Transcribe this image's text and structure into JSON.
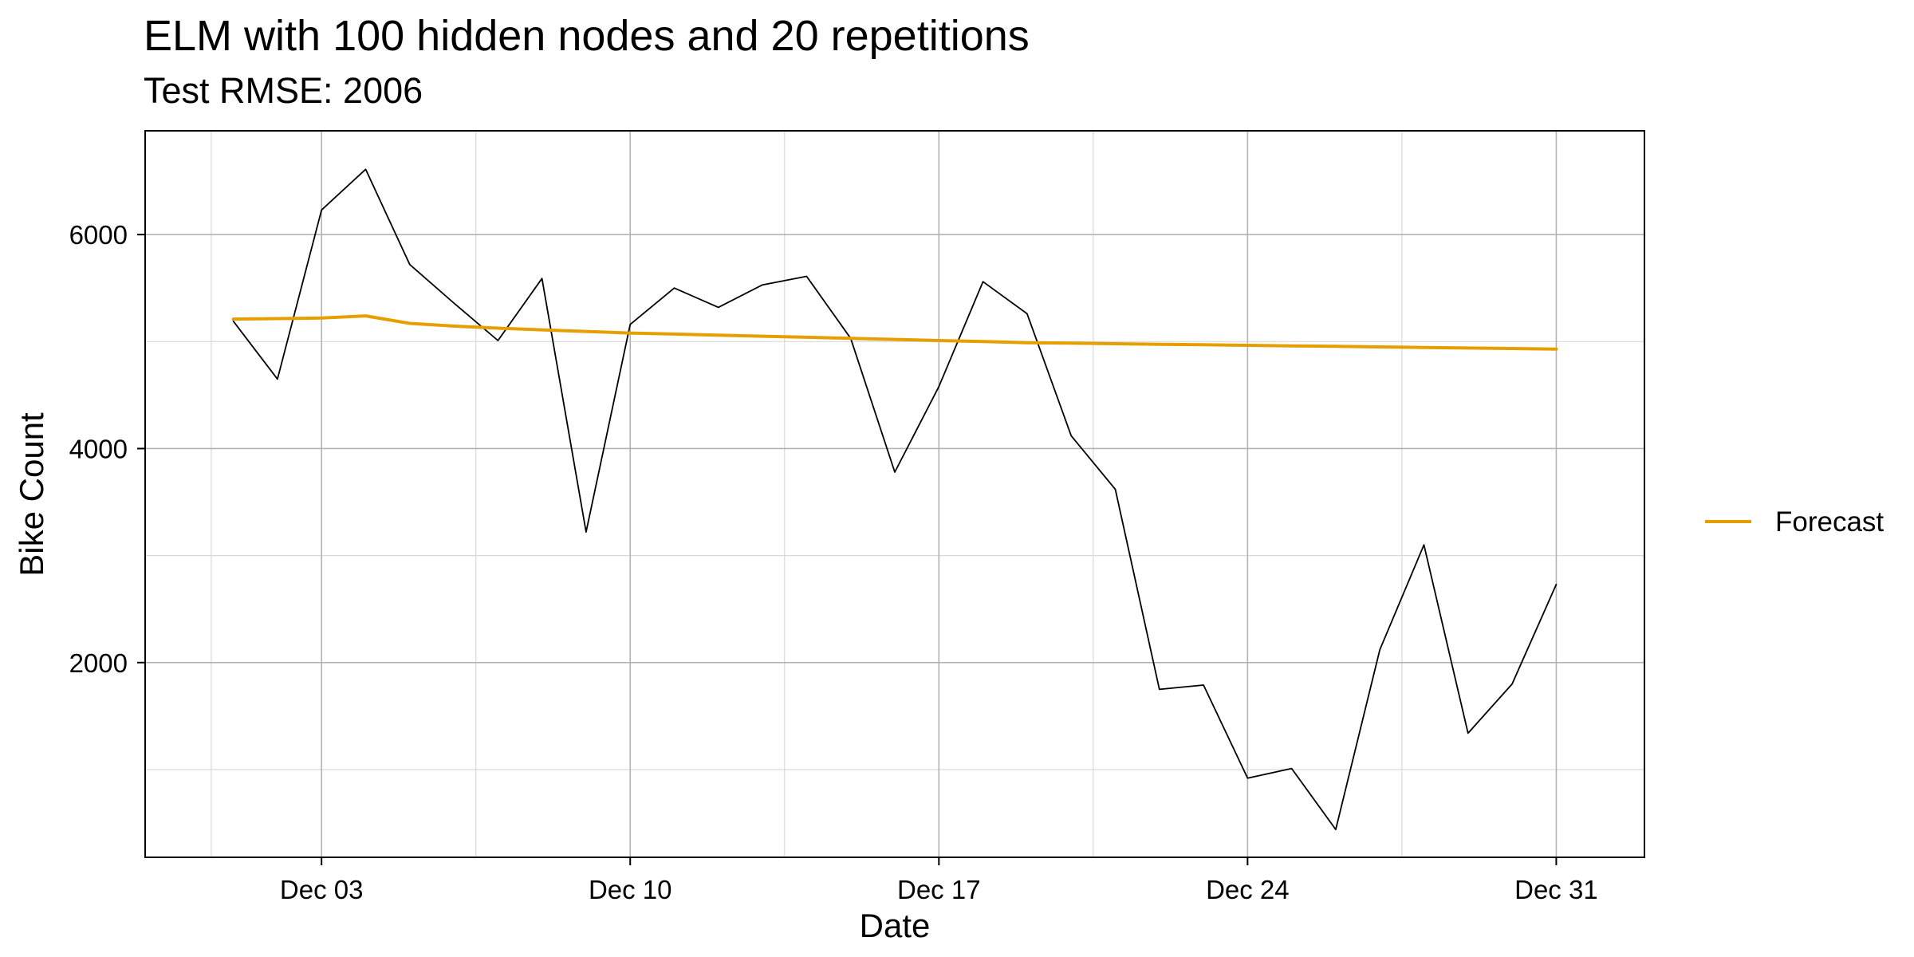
{
  "chart_data": {
    "type": "line",
    "title": "ELM with 100 hidden nodes and 20 repetitions",
    "subtitle": "Test RMSE: 2006",
    "xlabel": "Date",
    "ylabel": "Bike Count",
    "x_ticks": [
      "Dec 03",
      "Dec 10",
      "Dec 17",
      "Dec 24",
      "Dec 31"
    ],
    "y_ticks": [
      2000,
      4000,
      6000
    ],
    "ylim": [
      180,
      6970
    ],
    "grid": true,
    "legend_position": "right",
    "x": [
      "2012-12-01",
      "2012-12-02",
      "2012-12-03",
      "2012-12-04",
      "2012-12-05",
      "2012-12-06",
      "2012-12-07",
      "2012-12-08",
      "2012-12-09",
      "2012-12-10",
      "2012-12-11",
      "2012-12-12",
      "2012-12-13",
      "2012-12-14",
      "2012-12-15",
      "2012-12-16",
      "2012-12-17",
      "2012-12-18",
      "2012-12-19",
      "2012-12-20",
      "2012-12-21",
      "2012-12-22",
      "2012-12-23",
      "2012-12-24",
      "2012-12-25",
      "2012-12-26",
      "2012-12-27",
      "2012-12-28",
      "2012-12-29",
      "2012-12-30",
      "2012-12-31"
    ],
    "series": [
      {
        "name": "",
        "color": "#000000",
        "values": [
          5190,
          4650,
          6230,
          6610,
          5720,
          5360,
          5010,
          5590,
          3220,
          5160,
          5500,
          5320,
          5530,
          5610,
          5030,
          3780,
          4580,
          5560,
          5260,
          4120,
          3620,
          1750,
          1790,
          920,
          1010,
          440,
          2120,
          3100,
          1340,
          1800,
          2730
        ]
      },
      {
        "name": "Forecast",
        "color": "#E69F00",
        "values": [
          5210,
          5215,
          5220,
          5240,
          5170,
          5145,
          5125,
          5110,
          5095,
          5080,
          5070,
          5060,
          5050,
          5040,
          5030,
          5020,
          5010,
          5000,
          4990,
          4985,
          4980,
          4975,
          4970,
          4965,
          4960,
          4955,
          4950,
          4945,
          4940,
          4935,
          4930
        ]
      }
    ]
  }
}
